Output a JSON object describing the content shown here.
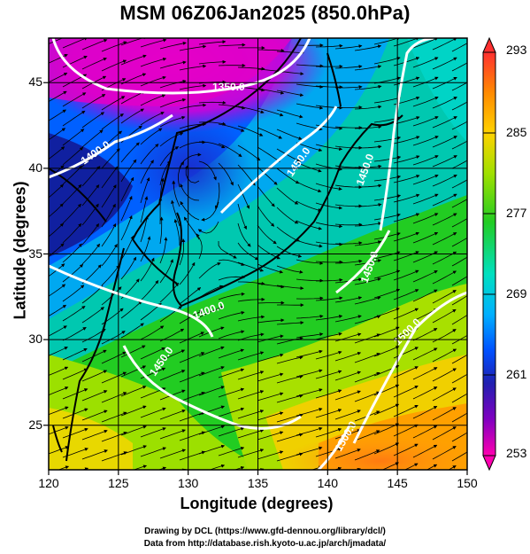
{
  "title": "MSM 06Z06Jan2025 (850.0hPa)",
  "x_axis": {
    "label": "Longitude (degrees)",
    "range": [
      120,
      150
    ],
    "ticks": [
      "120",
      "125",
      "130",
      "135",
      "140",
      "145",
      "150"
    ]
  },
  "y_axis": {
    "label": "Latitude  (degrees)",
    "range": [
      22.4,
      47.6
    ],
    "ticks": [
      "25",
      "30",
      "35",
      "40",
      "45"
    ]
  },
  "colorbar": {
    "min": 253,
    "max": 293,
    "labels": [
      "293",
      "285",
      "277",
      "269",
      "261",
      "253"
    ],
    "colors": [
      "#ff3030",
      "#ff8a00",
      "#ffd200",
      "#a0e000",
      "#22cc22",
      "#00e0c0",
      "#00b0ff",
      "#0050ff",
      "#2020b0",
      "#8000c0",
      "#ff00b0"
    ]
  },
  "contours": {
    "color": "#ffffff",
    "labels": [
      "1350.0",
      "1400.0",
      "1400.0",
      "1450.0",
      "1450.0",
      "1450.0",
      "1450.0",
      "1500.0",
      "1500.0"
    ]
  },
  "credits": {
    "line1": "Drawing by DCL (https://www.gfd-dennou.org/library/dcl/)",
    "line2": "Data from http://database.rish.kyoto-u.ac.jp/arch/jmadata/"
  }
}
